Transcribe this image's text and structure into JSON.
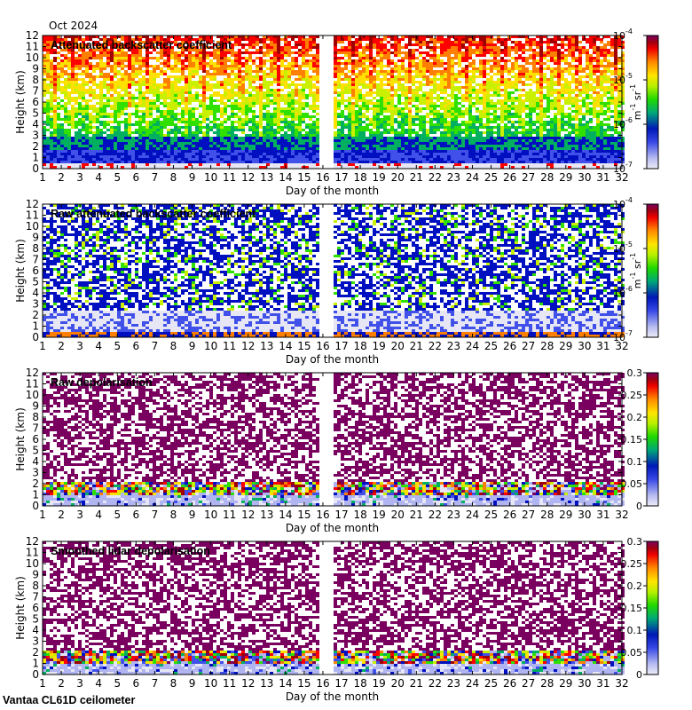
{
  "header": {
    "date_label": "Oct 2024"
  },
  "footer": {
    "instrument_label": "Vantaa CL61D ceilometer"
  },
  "colors": {
    "background": "#ffffff",
    "gap": "#ffffff",
    "scale": [
      "#e6e6f5",
      "#b0b4f0",
      "#4050e8",
      "#0010c0",
      "#00b060",
      "#30e000",
      "#c8f000",
      "#ffe000",
      "#ff8000",
      "#ff0000",
      "#a00000",
      "#7a0060"
    ]
  },
  "chart_data": [
    {
      "type": "heatmap",
      "title": "Attenuated backscatter coefficient",
      "xlabel": "Day of the month",
      "ylabel": "Height (km)",
      "xlim": [
        1,
        32
      ],
      "ylim": [
        0,
        12
      ],
      "x_ticks": [
        "1",
        "2",
        "3",
        "4",
        "5",
        "6",
        "7",
        "8",
        "9",
        "10",
        "11",
        "12",
        "13",
        "14",
        "15",
        "16",
        "17",
        "18",
        "19",
        "20",
        "21",
        "22",
        "23",
        "24",
        "25",
        "26",
        "27",
        "28",
        "29",
        "30",
        "31",
        "32"
      ],
      "y_ticks": [
        "0",
        "1",
        "2",
        "3",
        "4",
        "5",
        "6",
        "7",
        "8",
        "9",
        "10",
        "11",
        "12"
      ],
      "data_gap_days": [
        16.0,
        16.5
      ],
      "colorbar": {
        "scale": "log",
        "range": [
          1e-07,
          0.0001
        ],
        "ticks": [
          "10",
          "10",
          "10",
          "10"
        ],
        "tick_exponents": [
          "-7",
          "-6",
          "-5",
          "-4"
        ],
        "unit_base": [
          "m",
          "sr"
        ],
        "unit_exponents": [
          "-1",
          "-1"
        ]
      }
    },
    {
      "type": "heatmap",
      "title": "Raw attenuated backscatter coefficient",
      "xlabel": "Day of the month",
      "ylabel": "Height (km)",
      "xlim": [
        1,
        32
      ],
      "ylim": [
        0,
        12
      ],
      "x_ticks": [
        "1",
        "2",
        "3",
        "4",
        "5",
        "6",
        "7",
        "8",
        "9",
        "10",
        "11",
        "12",
        "13",
        "14",
        "15",
        "16",
        "17",
        "18",
        "19",
        "20",
        "21",
        "22",
        "23",
        "24",
        "25",
        "26",
        "27",
        "28",
        "29",
        "30",
        "31",
        "32"
      ],
      "y_ticks": [
        "0",
        "1",
        "2",
        "3",
        "4",
        "5",
        "6",
        "7",
        "8",
        "9",
        "10",
        "11",
        "12"
      ],
      "data_gap_days": [
        16.0,
        16.5
      ],
      "colorbar": {
        "scale": "log",
        "range": [
          1e-07,
          0.0001
        ],
        "ticks": [
          "10",
          "10",
          "10",
          "10"
        ],
        "tick_exponents": [
          "-7",
          "-6",
          "-5",
          "-4"
        ],
        "unit_base": [
          "m",
          "sr"
        ],
        "unit_exponents": [
          "-1",
          "-1"
        ]
      }
    },
    {
      "type": "heatmap",
      "title": "Raw depolarisation",
      "xlabel": "Day of the month",
      "ylabel": "Height (km)",
      "xlim": [
        1,
        32
      ],
      "ylim": [
        0,
        12
      ],
      "x_ticks": [
        "1",
        "2",
        "3",
        "4",
        "5",
        "6",
        "7",
        "8",
        "9",
        "10",
        "11",
        "12",
        "13",
        "14",
        "15",
        "16",
        "17",
        "18",
        "19",
        "20",
        "21",
        "22",
        "23",
        "24",
        "25",
        "26",
        "27",
        "28",
        "29",
        "30",
        "31",
        "32"
      ],
      "y_ticks": [
        "0",
        "1",
        "2",
        "3",
        "4",
        "5",
        "6",
        "7",
        "8",
        "9",
        "10",
        "11",
        "12"
      ],
      "data_gap_days": [
        16.0,
        16.5
      ],
      "colorbar": {
        "scale": "linear",
        "range": [
          0,
          0.3
        ],
        "ticks": [
          "0",
          "0.05",
          "0.1",
          "0.15",
          "0.2",
          "0.25",
          "0.3"
        ]
      }
    },
    {
      "type": "heatmap",
      "title": "Smoothed lidar depolarisation",
      "xlabel": "Day of the month",
      "ylabel": "Height (km)",
      "xlim": [
        1,
        32
      ],
      "ylim": [
        0,
        12
      ],
      "x_ticks": [
        "1",
        "2",
        "3",
        "4",
        "5",
        "6",
        "7",
        "8",
        "9",
        "10",
        "11",
        "12",
        "13",
        "14",
        "15",
        "16",
        "17",
        "18",
        "19",
        "20",
        "21",
        "22",
        "23",
        "24",
        "25",
        "26",
        "27",
        "28",
        "29",
        "30",
        "31",
        "32"
      ],
      "y_ticks": [
        "0",
        "1",
        "2",
        "3",
        "4",
        "5",
        "6",
        "7",
        "8",
        "9",
        "10",
        "11",
        "12"
      ],
      "data_gap_days": [
        16.0,
        16.5
      ],
      "colorbar": {
        "scale": "linear",
        "range": [
          0,
          0.3
        ],
        "ticks": [
          "0",
          "0.05",
          "0.1",
          "0.15",
          "0.2",
          "0.25",
          "0.3"
        ]
      }
    }
  ]
}
